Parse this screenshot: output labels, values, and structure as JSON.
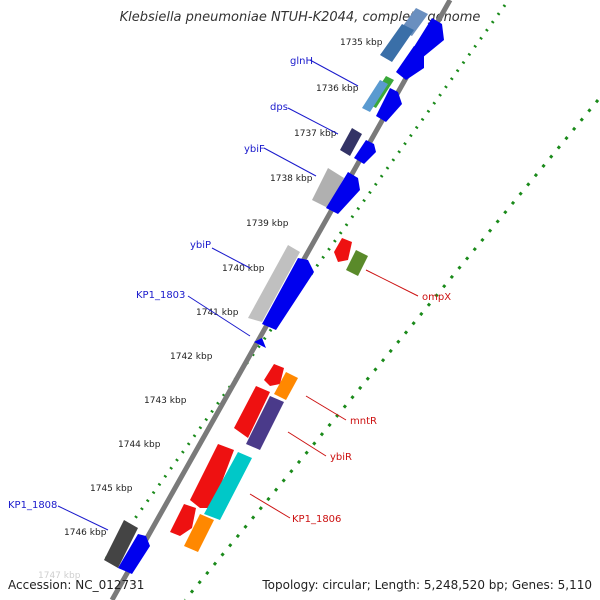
{
  "title": "Klebsiella pneumoniae NTUH-K2044, complete genome",
  "footer": {
    "accession": "Accession: NC_012731",
    "topology": "Topology: circular; Length: 5,248,520 bp; Genes: 5,110"
  },
  "ticks": [
    {
      "kbp": 1735,
      "label": "1735 kbp"
    },
    {
      "kbp": 1736,
      "label": "1736 kbp"
    },
    {
      "kbp": 1737,
      "label": "1737 kbp"
    },
    {
      "kbp": 1738,
      "label": "1738 kbp"
    },
    {
      "kbp": 1739,
      "label": "1739 kbp"
    },
    {
      "kbp": 1740,
      "label": "1740 kbp"
    },
    {
      "kbp": 1741,
      "label": "1741 kbp"
    },
    {
      "kbp": 1742,
      "label": "1742 kbp"
    },
    {
      "kbp": 1743,
      "label": "1743 kbp"
    },
    {
      "kbp": 1744,
      "label": "1744 kbp"
    },
    {
      "kbp": 1745,
      "label": "1745 kbp"
    },
    {
      "kbp": 1746,
      "label": "1746 kbp"
    },
    {
      "kbp": 1747,
      "label": "1747 kbp"
    }
  ],
  "gene_labels_forward": [
    {
      "name": "glnH",
      "color": "#1a1acc"
    },
    {
      "name": "dps",
      "color": "#1a1acc"
    },
    {
      "name": "ybiF",
      "color": "#1a1acc"
    },
    {
      "name": "ybiP",
      "color": "#1a1acc"
    },
    {
      "name": "KP1_1803",
      "color": "#1a1acc"
    },
    {
      "name": "KP1_1808",
      "color": "#1a1acc"
    }
  ],
  "gene_labels_reverse": [
    {
      "name": "ompX",
      "color": "#cc1111"
    },
    {
      "name": "mntR",
      "color": "#cc1111"
    },
    {
      "name": "ybiR",
      "color": "#cc1111"
    },
    {
      "name": "KP1_1806",
      "color": "#cc1111"
    }
  ],
  "colors": {
    "backbone": "#8a8a8a",
    "ruler_dots": "#1a8a1a",
    "forward_cds": "#0000ee",
    "reverse_cds": "#ee1111"
  }
}
